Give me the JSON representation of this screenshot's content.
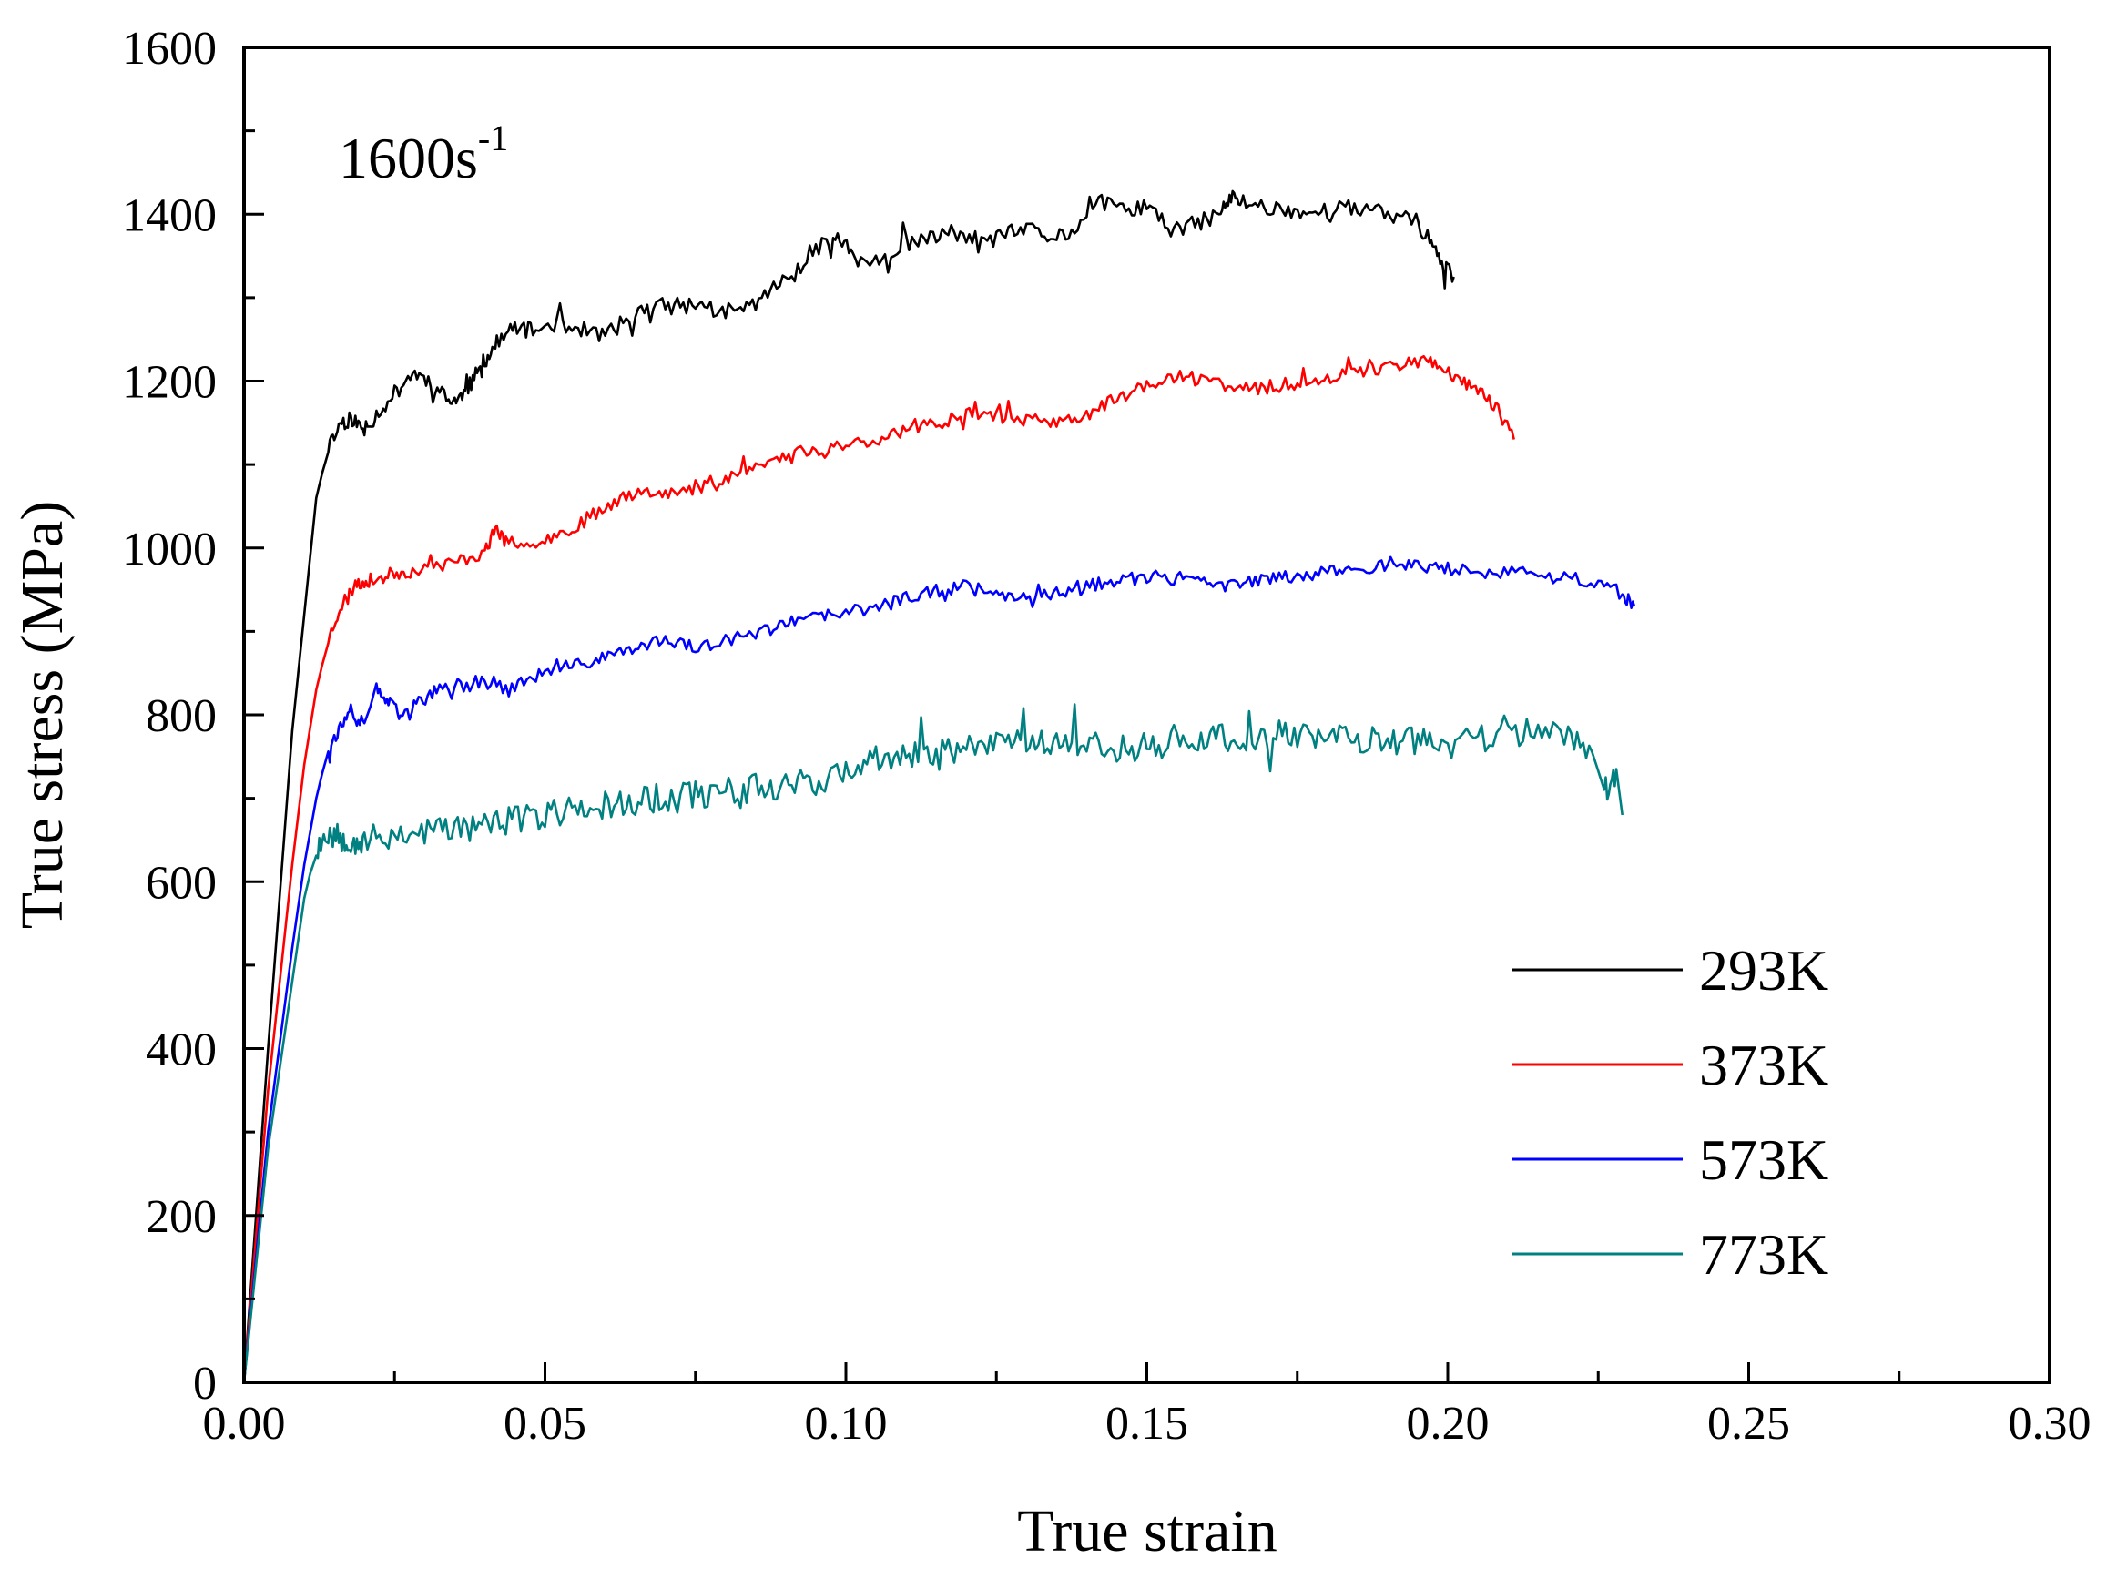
{
  "chart_data": {
    "type": "line",
    "xlabel": "True strain",
    "ylabel": "True stress (MPa)",
    "annotation": {
      "text": "1600s",
      "superscript": "-1"
    },
    "xlim": [
      0,
      0.3
    ],
    "ylim": [
      0,
      1600
    ],
    "xticks": [
      0.0,
      0.05,
      0.1,
      0.15,
      0.2,
      0.25,
      0.3
    ],
    "xtick_labels": [
      "0.00",
      "0.05",
      "0.10",
      "0.15",
      "0.20",
      "0.25",
      "0.30"
    ],
    "yticks": [
      0,
      200,
      400,
      600,
      800,
      1000,
      1200,
      1400,
      1600
    ],
    "ytick_labels": [
      "0",
      "200",
      "400",
      "600",
      "800",
      "1000",
      "1200",
      "1400",
      "1600"
    ],
    "legend_position": "lower-right",
    "series": [
      {
        "name": "293K",
        "color": "#000000",
        "x": [
          0,
          0.004,
          0.008,
          0.012,
          0.014,
          0.016,
          0.018,
          0.02,
          0.022,
          0.025,
          0.028,
          0.031,
          0.034,
          0.036,
          0.038,
          0.04,
          0.042,
          0.045,
          0.048,
          0.052,
          0.056,
          0.06,
          0.064,
          0.068,
          0.072,
          0.076,
          0.08,
          0.084,
          0.088,
          0.092,
          0.096,
          0.099,
          0.102,
          0.106,
          0.11,
          0.114,
          0.118,
          0.122,
          0.126,
          0.13,
          0.134,
          0.138,
          0.142,
          0.146,
          0.15,
          0.154,
          0.158,
          0.162,
          0.164,
          0.166,
          0.17,
          0.174,
          0.178,
          0.182,
          0.186,
          0.19,
          0.194,
          0.197,
          0.199,
          0.201
        ],
        "y": [
          0,
          400,
          780,
          1060,
          1120,
          1150,
          1155,
          1140,
          1160,
          1185,
          1210,
          1200,
          1175,
          1180,
          1200,
          1225,
          1245,
          1265,
          1260,
          1270,
          1262,
          1255,
          1275,
          1290,
          1290,
          1292,
          1280,
          1290,
          1310,
          1335,
          1370,
          1370,
          1345,
          1340,
          1365,
          1370,
          1380,
          1362,
          1375,
          1382,
          1372,
          1380,
          1415,
          1405,
          1410,
          1380,
          1388,
          1400,
          1420,
          1415,
          1408,
          1405,
          1400,
          1410,
          1405,
          1400,
          1395,
          1370,
          1340,
          1325
        ],
        "noise": 10,
        "seed": 11
      },
      {
        "name": "373K",
        "color": "#ff0000",
        "x": [
          0,
          0.004,
          0.008,
          0.01,
          0.012,
          0.014,
          0.016,
          0.018,
          0.02,
          0.022,
          0.025,
          0.028,
          0.032,
          0.036,
          0.04,
          0.042,
          0.044,
          0.048,
          0.052,
          0.056,
          0.06,
          0.064,
          0.068,
          0.072,
          0.076,
          0.08,
          0.084,
          0.088,
          0.092,
          0.096,
          0.1,
          0.104,
          0.108,
          0.112,
          0.116,
          0.12,
          0.124,
          0.128,
          0.132,
          0.136,
          0.14,
          0.144,
          0.148,
          0.152,
          0.156,
          0.16,
          0.164,
          0.168,
          0.172,
          0.176,
          0.18,
          0.184,
          0.188,
          0.192,
          0.196,
          0.199,
          0.202,
          0.205,
          0.208,
          0.211
        ],
        "y": [
          0,
          350,
          620,
          740,
          830,
          890,
          930,
          950,
          960,
          962,
          970,
          972,
          978,
          985,
          995,
          1025,
          1000,
          1010,
          1015,
          1030,
          1050,
          1065,
          1070,
          1065,
          1072,
          1085,
          1095,
          1105,
          1115,
          1118,
          1125,
          1128,
          1138,
          1145,
          1150,
          1165,
          1160,
          1155,
          1152,
          1150,
          1160,
          1175,
          1190,
          1200,
          1205,
          1200,
          1195,
          1190,
          1195,
          1198,
          1205,
          1210,
          1215,
          1220,
          1225,
          1218,
          1200,
          1190,
          1170,
          1130
        ],
        "noise": 8,
        "seed": 23
      },
      {
        "name": "573K",
        "color": "#0000ff",
        "x": [
          0,
          0.004,
          0.008,
          0.01,
          0.012,
          0.014,
          0.016,
          0.018,
          0.02,
          0.022,
          0.024,
          0.026,
          0.029,
          0.032,
          0.036,
          0.04,
          0.044,
          0.048,
          0.052,
          0.056,
          0.06,
          0.064,
          0.068,
          0.072,
          0.076,
          0.08,
          0.084,
          0.088,
          0.092,
          0.096,
          0.1,
          0.104,
          0.108,
          0.112,
          0.116,
          0.12,
          0.124,
          0.128,
          0.132,
          0.136,
          0.14,
          0.144,
          0.148,
          0.152,
          0.156,
          0.16,
          0.164,
          0.168,
          0.172,
          0.176,
          0.18,
          0.184,
          0.188,
          0.192,
          0.196,
          0.2,
          0.205,
          0.21,
          0.215,
          0.22,
          0.225,
          0.229,
          0.231
        ],
        "y": [
          0,
          300,
          520,
          620,
          700,
          760,
          785,
          800,
          790,
          830,
          815,
          800,
          815,
          828,
          840,
          840,
          830,
          845,
          855,
          860,
          870,
          880,
          888,
          885,
          880,
          888,
          895,
          905,
          912,
          918,
          922,
          928,
          935,
          945,
          950,
          955,
          950,
          945,
          940,
          948,
          955,
          960,
          962,
          965,
          960,
          958,
          955,
          960,
          965,
          968,
          972,
          975,
          978,
          980,
          978,
          975,
          972,
          970,
          968,
          965,
          958,
          945,
          930
        ],
        "noise": 8,
        "seed": 37
      },
      {
        "name": "773K",
        "color": "#008080",
        "x": [
          0,
          0.004,
          0.008,
          0.01,
          0.012,
          0.014,
          0.016,
          0.018,
          0.02,
          0.024,
          0.028,
          0.032,
          0.036,
          0.04,
          0.044,
          0.048,
          0.052,
          0.056,
          0.06,
          0.064,
          0.068,
          0.072,
          0.076,
          0.08,
          0.084,
          0.088,
          0.092,
          0.096,
          0.1,
          0.104,
          0.108,
          0.112,
          0.116,
          0.12,
          0.124,
          0.128,
          0.132,
          0.136,
          0.14,
          0.144,
          0.148,
          0.152,
          0.156,
          0.16,
          0.164,
          0.168,
          0.172,
          0.176,
          0.18,
          0.184,
          0.188,
          0.192,
          0.196,
          0.2,
          0.205,
          0.21,
          0.215,
          0.22,
          0.224,
          0.226,
          0.228,
          0.229
        ],
        "y": [
          0,
          280,
          480,
          580,
          640,
          660,
          655,
          650,
          648,
          655,
          660,
          662,
          665,
          668,
          672,
          678,
          683,
          688,
          692,
          696,
          700,
          702,
          705,
          708,
          712,
          716,
          720,
          722,
          730,
          740,
          748,
          752,
          756,
          760,
          768,
          775,
          772,
          768,
          762,
          760,
          762,
          765,
          768,
          770,
          772,
          775,
          776,
          775,
          774,
          772,
          770,
          768,
          766,
          765,
          772,
          778,
          782,
          770,
          755,
          710,
          735,
          680
        ],
        "noise": 18,
        "seed": 53
      }
    ]
  }
}
